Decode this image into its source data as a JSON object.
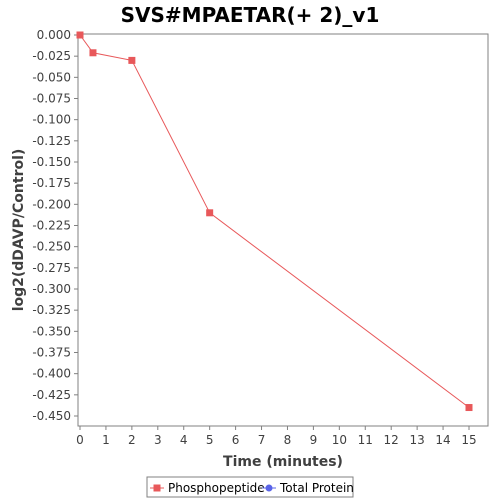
{
  "chart_data": {
    "type": "line",
    "title": "SVS#MPAETAR(+ 2)_v1",
    "xlabel": "Time (minutes)",
    "ylabel": "log2(dDAVP/Control)",
    "xlim": [
      0,
      15.7
    ],
    "ylim": [
      -0.465,
      0.0
    ],
    "x_ticks": [
      0,
      1,
      2,
      3,
      4,
      5,
      6,
      7,
      8,
      9,
      10,
      11,
      12,
      13,
      14,
      15
    ],
    "x_tick_labels": [
      "0",
      "1",
      "2",
      "3",
      "4",
      "5",
      "6",
      "7",
      "8",
      "9",
      "10",
      "11",
      "12",
      "13",
      "14",
      "15"
    ],
    "y_ticks": [
      0.0,
      -0.025,
      -0.05,
      -0.075,
      -0.1,
      -0.125,
      -0.15,
      -0.175,
      -0.2,
      -0.225,
      -0.25,
      -0.275,
      -0.3,
      -0.325,
      -0.35,
      -0.375,
      -0.4,
      -0.425,
      -0.45
    ],
    "y_tick_labels": [
      "0.000",
      "-0.025",
      "-0.050",
      "-0.075",
      "-0.100",
      "-0.125",
      "-0.150",
      "-0.175",
      "-0.200",
      "-0.225",
      "-0.250",
      "-0.275",
      "-0.300",
      "-0.325",
      "-0.350",
      "-0.375",
      "-0.400",
      "-0.425",
      "-0.450"
    ],
    "grid": false,
    "legend_position": "bottom",
    "series": [
      {
        "name": "Phosphopeptide",
        "color": "#e8585a",
        "marker": "square",
        "x": [
          0,
          0.5,
          2,
          5,
          15
        ],
        "y": [
          0.0,
          -0.021,
          -0.03,
          -0.21,
          -0.44
        ]
      },
      {
        "name": "Total Protein",
        "color": "#5a64e8",
        "marker": "circle",
        "x": [],
        "y": []
      }
    ]
  }
}
